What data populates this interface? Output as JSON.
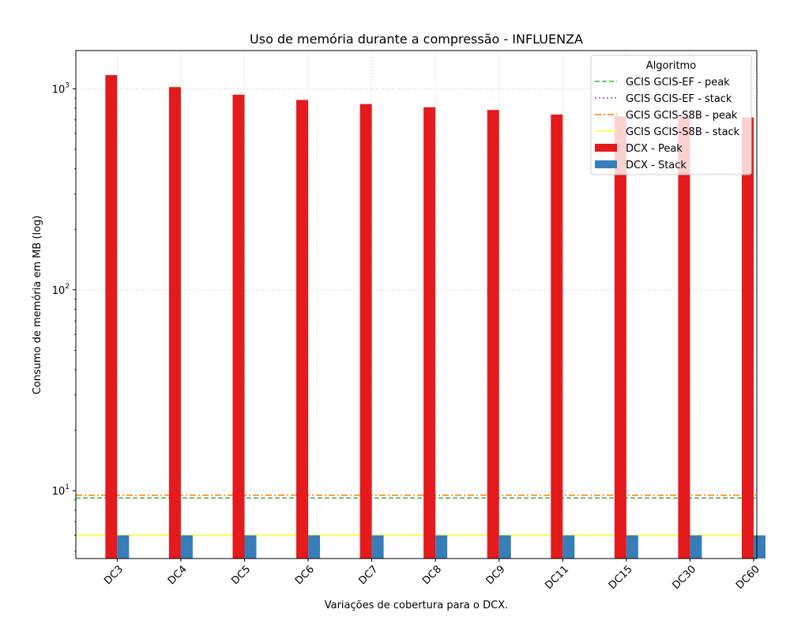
{
  "chart_data": {
    "type": "bar",
    "title": "Uso de memória durante a compressão -  INFLUENZA",
    "xlabel": "Variações de cobertura para o DCX.",
    "ylabel": "Consumo de memória em MB (log)",
    "yscale": "log",
    "ylim": [
      4.6,
      1550
    ],
    "yticks": [
      {
        "value": 10,
        "base": "10",
        "exp": "1"
      },
      {
        "value": 100,
        "base": "10",
        "exp": "2"
      },
      {
        "value": 1000,
        "base": "10",
        "exp": "3"
      }
    ],
    "grid": true,
    "categories": [
      "DC3",
      "DC4",
      "DC5",
      "DC6",
      "DC7",
      "DC8",
      "DC9",
      "DC11",
      "DC15",
      "DC30",
      "DC60"
    ],
    "series": [
      {
        "name": "DCX - Peak",
        "color": "#e41a1c",
        "values": [
          1170,
          1020,
          935,
          880,
          840,
          810,
          785,
          745,
          730,
          725,
          720
        ]
      },
      {
        "name": "DCX - Stack",
        "color": "#377eb8",
        "values": [
          6.0,
          6.0,
          6.0,
          6.0,
          6.0,
          6.0,
          6.0,
          6.0,
          6.0,
          6.0,
          6.0
        ]
      }
    ],
    "hlines": [
      {
        "name": "GCIS GCIS-EF - peak",
        "value": 9.2,
        "color": "#4daf4a",
        "style": "dashed"
      },
      {
        "name": "GCIS GCIS-EF - stack",
        "value": 6.0,
        "color": "#984ea3",
        "style": "dotted"
      },
      {
        "name": "GCIS GCIS-S8B - peak",
        "value": 9.5,
        "color": "#ff7f00",
        "style": "dashdot"
      },
      {
        "name": "GCIS GCIS-S8B - stack",
        "value": 6.0,
        "color": "#ffff33",
        "style": "solid"
      }
    ],
    "legend": {
      "title": "Algoritmo",
      "placement": "top-right",
      "entries": [
        {
          "label": "GCIS GCIS-EF - peak",
          "kind": "line",
          "color": "#4daf4a",
          "style": "dashed"
        },
        {
          "label": "GCIS GCIS-EF - stack",
          "kind": "line",
          "color": "#984ea3",
          "style": "dotted"
        },
        {
          "label": "GCIS GCIS-S8B - peak",
          "kind": "line",
          "color": "#ff7f00",
          "style": "dashdot"
        },
        {
          "label": "GCIS GCIS-S8B - stack",
          "kind": "line",
          "color": "#ffff33",
          "style": "solid"
        },
        {
          "label": "DCX - Peak",
          "kind": "patch",
          "color": "#e41a1c"
        },
        {
          "label": "DCX - Stack",
          "kind": "patch",
          "color": "#377eb8"
        }
      ]
    }
  }
}
